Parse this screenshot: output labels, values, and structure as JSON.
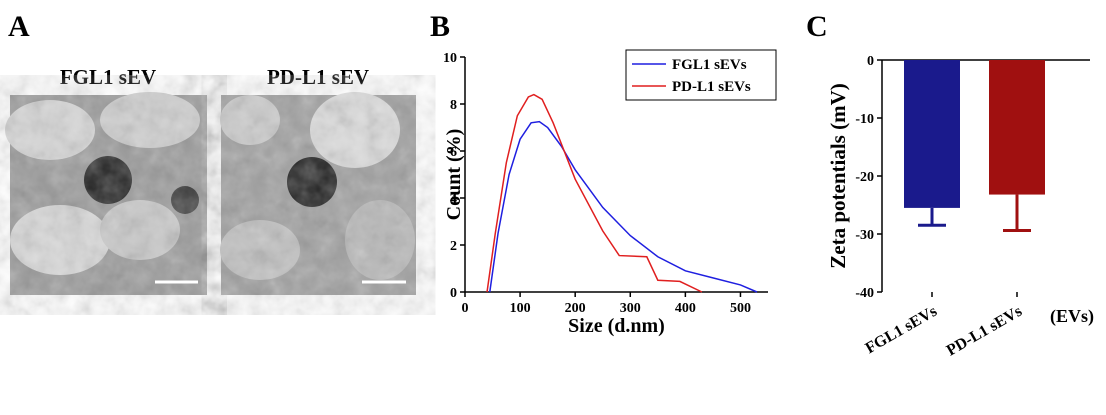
{
  "panel_labels": [
    "A",
    "B",
    "C"
  ],
  "images": [
    {
      "title": "FGL1 sEV"
    },
    {
      "title": "PD-L1 sEV"
    }
  ],
  "chart_data": [
    {
      "type": "line",
      "xlabel": "Size (d.nm)",
      "ylabel": "Count (%)",
      "xlim": [
        0,
        550
      ],
      "xticks": [
        0,
        100,
        200,
        300,
        400,
        500
      ],
      "ylim": [
        0,
        10
      ],
      "yticks": [
        0,
        2,
        4,
        6,
        8,
        10
      ],
      "legend": "upper right",
      "series": [
        {
          "name": "FGL1 sEVs",
          "color": "#1f1fe0",
          "x": [
            45,
            60,
            80,
            100,
            120,
            135,
            150,
            175,
            200,
            250,
            300,
            350,
            400,
            450,
            500,
            530
          ],
          "values": [
            0,
            2.5,
            5,
            6.5,
            7.2,
            7.25,
            7.0,
            6.2,
            5.2,
            3.6,
            2.4,
            1.5,
            0.9,
            0.6,
            0.3,
            0
          ]
        },
        {
          "name": "PD-L1 sEVs",
          "color": "#e01f1f",
          "x": [
            40,
            55,
            75,
            95,
            115,
            125,
            140,
            160,
            200,
            250,
            280,
            330,
            350,
            390,
            430
          ],
          "values": [
            0,
            2.5,
            5.5,
            7.5,
            8.3,
            8.4,
            8.2,
            7.2,
            4.8,
            2.6,
            1.55,
            1.5,
            0.5,
            0.45,
            0
          ]
        }
      ]
    },
    {
      "type": "bar",
      "ylabel": "Zeta potentials (mV)",
      "xlabel": "(EVs)",
      "categories": [
        "FGL1 sEVs",
        "PD-L1 sEVs"
      ],
      "values": [
        -25.5,
        -23.2
      ],
      "errors": [
        3,
        6.2
      ],
      "colors": [
        "#1a1a8c",
        "#a01010"
      ],
      "ylim": [
        -40,
        0
      ],
      "yticks": [
        0,
        -10,
        -20,
        -30,
        -40
      ]
    }
  ]
}
